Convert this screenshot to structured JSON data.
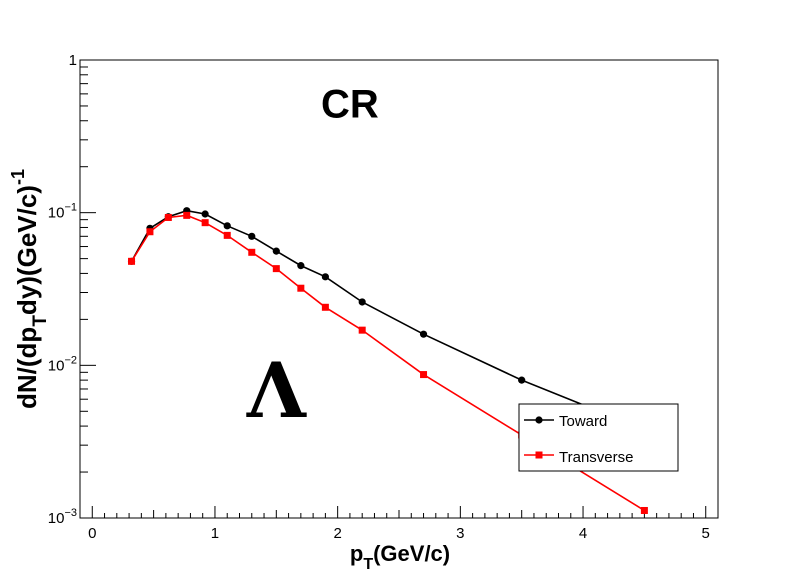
{
  "chart_data": {
    "type": "line",
    "xlabel": "p",
    "xlabel_sub": "T",
    "xlabel_suffix": "(GeV/c)",
    "ylabel": "dN/(dp",
    "ylabel_sub": "T",
    "ylabel_mid": "dy)(GeV/c)",
    "ylabel_sup": "-1",
    "xlim": [
      -0.1,
      5.1
    ],
    "ylim": [
      0.001,
      1
    ],
    "y_scale": "log",
    "x_ticks": [
      {
        "value": 0,
        "label": "0"
      },
      {
        "value": 1,
        "label": "1"
      },
      {
        "value": 2,
        "label": "2"
      },
      {
        "value": 3,
        "label": "3"
      },
      {
        "value": 4,
        "label": "4"
      },
      {
        "value": 5,
        "label": "5"
      }
    ],
    "y_ticks": [
      {
        "value": 0.001,
        "base": "10",
        "exp": "−3"
      },
      {
        "value": 0.01,
        "base": "10",
        "exp": "−2"
      },
      {
        "value": 0.1,
        "base": "10",
        "exp": "−1"
      },
      {
        "value": 1,
        "base": "1",
        "exp": ""
      }
    ],
    "annotations": [
      {
        "text": "CR",
        "value_x": 2.1,
        "value_y": 0.42
      },
      {
        "text": "Λ",
        "value_x": 1.5,
        "value_y": 0.0046
      }
    ],
    "legend_placement": "bottom-right",
    "grid": false,
    "series": [
      {
        "name": "Toward",
        "color": "#000000",
        "marker": "circle",
        "points": [
          {
            "x": 0.32,
            "y": 0.048
          },
          {
            "x": 0.47,
            "y": 0.079
          },
          {
            "x": 0.62,
            "y": 0.094
          },
          {
            "x": 0.77,
            "y": 0.103
          },
          {
            "x": 0.92,
            "y": 0.098
          },
          {
            "x": 1.1,
            "y": 0.082
          },
          {
            "x": 1.3,
            "y": 0.07
          },
          {
            "x": 1.5,
            "y": 0.056
          },
          {
            "x": 1.7,
            "y": 0.045
          },
          {
            "x": 1.9,
            "y": 0.038
          },
          {
            "x": 2.2,
            "y": 0.026
          },
          {
            "x": 2.7,
            "y": 0.016
          },
          {
            "x": 3.5,
            "y": 0.008
          },
          {
            "x": 4.5,
            "y": 0.0038
          }
        ]
      },
      {
        "name": "Transverse",
        "color": "#ff0000",
        "marker": "square",
        "points": [
          {
            "x": 0.32,
            "y": 0.048
          },
          {
            "x": 0.47,
            "y": 0.075
          },
          {
            "x": 0.62,
            "y": 0.093
          },
          {
            "x": 0.77,
            "y": 0.096
          },
          {
            "x": 0.92,
            "y": 0.086
          },
          {
            "x": 1.1,
            "y": 0.071
          },
          {
            "x": 1.3,
            "y": 0.055
          },
          {
            "x": 1.5,
            "y": 0.043
          },
          {
            "x": 1.7,
            "y": 0.032
          },
          {
            "x": 1.9,
            "y": 0.024
          },
          {
            "x": 2.2,
            "y": 0.017
          },
          {
            "x": 2.7,
            "y": 0.0087
          },
          {
            "x": 3.5,
            "y": 0.0035
          },
          {
            "x": 4.5,
            "y": 0.00112
          }
        ]
      }
    ]
  }
}
